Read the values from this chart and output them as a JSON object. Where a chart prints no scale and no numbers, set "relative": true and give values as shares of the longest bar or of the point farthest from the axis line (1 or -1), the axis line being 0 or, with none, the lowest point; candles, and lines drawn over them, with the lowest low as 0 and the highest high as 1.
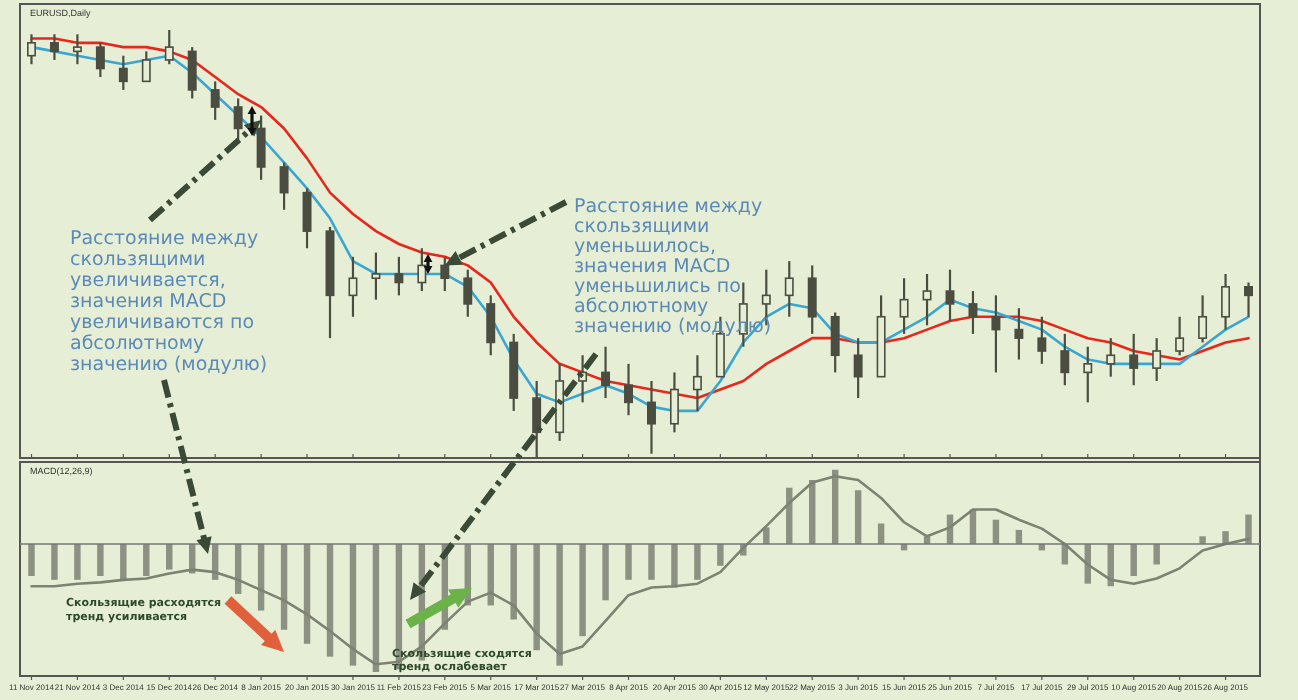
{
  "chart_data": [
    {
      "type": "candlestick",
      "title": "EURUSD,Daily",
      "relative": true,
      "tick_labels": false,
      "color": "#4a4d40",
      "categories": [
        "11 Nov 2014",
        null,
        "21 Nov 2014",
        null,
        "3 Dec 2014",
        null,
        "15 Dec 2014",
        null,
        "26 Dec 2014",
        null,
        "8 Jan 2015",
        null,
        "20 Jan 2015",
        null,
        "30 Jan 2015",
        null,
        "11 Feb 2015",
        null,
        "23 Feb 2015",
        null,
        "5 Mar 2015",
        null,
        "17 Mar 2015",
        null,
        "27 Mar 2015",
        null,
        "8 Apr 2015",
        null,
        "20 Apr 2015",
        null,
        "30 Apr 2015",
        null,
        "12 May 2015",
        null,
        "22 May 2015",
        null,
        "3 Jun 2015",
        null,
        "15 Jun 2015",
        null,
        "25 Jun 2015",
        null,
        "7 Jul 2015",
        null,
        "17 Jul 2015",
        null,
        "29 Jul 2015",
        null,
        "10 Aug 2015",
        null,
        "20 Aug 2015",
        null,
        "26 Aug 2015",
        null
      ],
      "ohlc": [
        [
          0.94,
          0.99,
          0.92,
          0.97
        ],
        [
          0.97,
          0.99,
          0.93,
          0.95
        ],
        [
          0.95,
          0.99,
          0.92,
          0.96
        ],
        [
          0.96,
          0.97,
          0.89,
          0.91
        ],
        [
          0.91,
          0.94,
          0.86,
          0.88
        ],
        [
          0.88,
          0.95,
          0.88,
          0.93
        ],
        [
          0.93,
          1,
          0.92,
          0.96
        ],
        [
          0.95,
          0.96,
          0.84,
          0.86
        ],
        [
          0.86,
          0.88,
          0.79,
          0.82
        ],
        [
          0.82,
          0.84,
          0.74,
          0.77
        ],
        [
          0.77,
          0.8,
          0.65,
          0.68
        ],
        [
          0.68,
          0.69,
          0.58,
          0.62
        ],
        [
          0.62,
          0.63,
          0.49,
          0.53
        ],
        [
          0.53,
          0.54,
          0.28,
          0.38
        ],
        [
          0.38,
          0.47,
          0.33,
          0.42
        ],
        [
          0.42,
          0.48,
          0.37,
          0.43
        ],
        [
          0.43,
          0.47,
          0.38,
          0.41
        ],
        [
          0.41,
          0.49,
          0.39,
          0.45
        ],
        [
          0.45,
          0.47,
          0.39,
          0.42
        ],
        [
          0.42,
          0.44,
          0.33,
          0.36
        ],
        [
          0.36,
          0.38,
          0.24,
          0.27
        ],
        [
          0.27,
          0.29,
          0.11,
          0.14
        ],
        [
          0.14,
          0.18,
          0,
          0.06
        ],
        [
          0.06,
          0.22,
          0.04,
          0.18
        ],
        [
          0.18,
          0.24,
          0.13,
          0.2
        ],
        [
          0.2,
          0.26,
          0.14,
          0.17
        ],
        [
          0.17,
          0.22,
          0.1,
          0.13
        ],
        [
          0.13,
          0.18,
          0.01,
          0.08
        ],
        [
          0.08,
          0.2,
          0.06,
          0.16
        ],
        [
          0.16,
          0.24,
          0.11,
          0.19
        ],
        [
          0.19,
          0.33,
          0.19,
          0.29
        ],
        [
          0.29,
          0.41,
          0.26,
          0.36
        ],
        [
          0.36,
          0.44,
          0.31,
          0.38
        ],
        [
          0.38,
          0.46,
          0.33,
          0.42
        ],
        [
          0.42,
          0.45,
          0.29,
          0.33
        ],
        [
          0.33,
          0.34,
          0.2,
          0.24
        ],
        [
          0.24,
          0.28,
          0.14,
          0.19
        ],
        [
          0.19,
          0.38,
          0.19,
          0.33
        ],
        [
          0.33,
          0.42,
          0.29,
          0.37
        ],
        [
          0.37,
          0.43,
          0.31,
          0.39
        ],
        [
          0.39,
          0.44,
          0.32,
          0.36
        ],
        [
          0.36,
          0.39,
          0.29,
          0.33
        ],
        [
          0.33,
          0.38,
          0.2,
          0.3
        ],
        [
          0.3,
          0.35,
          0.23,
          0.28
        ],
        [
          0.28,
          0.33,
          0.22,
          0.25
        ],
        [
          0.25,
          0.29,
          0.17,
          0.2
        ],
        [
          0.2,
          0.26,
          0.13,
          0.22
        ],
        [
          0.22,
          0.28,
          0.19,
          0.24
        ],
        [
          0.24,
          0.29,
          0.17,
          0.21
        ],
        [
          0.21,
          0.28,
          0.18,
          0.25
        ],
        [
          0.25,
          0.33,
          0.24,
          0.28
        ],
        [
          0.28,
          0.38,
          0.27,
          0.33
        ],
        [
          0.33,
          0.43,
          0.3,
          0.4
        ],
        [
          0.4,
          0.41,
          0.33,
          0.38
        ]
      ],
      "series": [
        {
          "type": "line",
          "color": "#e8261c",
          "values": [
            0.98,
            0.98,
            0.97,
            0.97,
            0.96,
            0.96,
            0.95,
            0.93,
            0.89,
            0.85,
            0.82,
            0.77,
            0.7,
            0.62,
            0.57,
            0.53,
            0.5,
            0.48,
            0.47,
            0.45,
            0.41,
            0.33,
            0.27,
            0.22,
            0.2,
            0.18,
            0.17,
            0.16,
            0.15,
            0.14,
            0.16,
            0.18,
            0.22,
            0.25,
            0.28,
            0.28,
            0.27,
            0.27,
            0.28,
            0.3,
            0.32,
            0.33,
            0.33,
            0.33,
            0.32,
            0.3,
            0.28,
            0.27,
            0.25,
            0.24,
            0.23,
            0.25,
            0.27,
            0.28
          ]
        },
        {
          "type": "line",
          "color": "#3aa6d0",
          "values": [
            0.96,
            0.95,
            0.94,
            0.93,
            0.92,
            0.93,
            0.94,
            0.9,
            0.85,
            0.8,
            0.75,
            0.69,
            0.63,
            0.56,
            0.46,
            0.43,
            0.43,
            0.43,
            0.43,
            0.4,
            0.33,
            0.23,
            0.15,
            0.13,
            0.15,
            0.17,
            0.15,
            0.12,
            0.11,
            0.11,
            0.18,
            0.27,
            0.33,
            0.36,
            0.35,
            0.29,
            0.27,
            0.27,
            0.3,
            0.33,
            0.37,
            0.35,
            0.34,
            0.32,
            0.3,
            0.26,
            0.23,
            0.22,
            0.22,
            0.22,
            0.22,
            0.26,
            0.3,
            0.33
          ]
        }
      ],
      "annotations": [
        {
          "text": "Расстояние между скользящими увеличивается, значения MACD увеличиваются по абсолютному значению (модулю)",
          "x": "8 Jan 2015",
          "y": 0.79
        },
        {
          "text": "Расстояние между скользящими уменьшилось, значения MACD уменьшились по абсолютному значению (модулю)",
          "x": "23 Feb 2015",
          "y": 0.45
        }
      ]
    },
    {
      "type": "bar",
      "title": "MACD(12,26,9)",
      "relative": true,
      "categories": [
        "11 Nov 2014",
        null,
        "21 Nov 2014",
        null,
        "3 Dec 2014",
        null,
        "15 Dec 2014",
        null,
        "26 Dec 2014",
        null,
        "8 Jan 2015",
        null,
        "20 Jan 2015",
        null,
        "30 Jan 2015",
        null,
        "11 Feb 2015",
        null,
        "23 Feb 2015",
        null,
        "5 Mar 2015",
        null,
        "17 Mar 2015",
        null,
        "27 Mar 2015",
        null,
        "8 Apr 2015",
        null,
        "20 Apr 2015",
        null,
        "30 Apr 2015",
        null,
        "12 May 2015",
        null,
        "22 May 2015",
        null,
        "3 Jun 2015",
        null,
        "15 Jun 2015",
        null,
        "25 Jun 2015",
        null,
        "7 Jul 2015",
        null,
        "17 Jul 2015",
        null,
        "29 Jul 2015",
        null,
        "10 Aug 2015",
        null,
        "20 Aug 2015",
        null,
        "26 Aug 2015",
        null
      ],
      "series": [
        {
          "color": "#8c9182",
          "values": [
            -0.25,
            -0.28,
            -0.28,
            -0.25,
            -0.28,
            -0.25,
            -0.2,
            -0.23,
            -0.28,
            -0.39,
            -0.52,
            -0.67,
            -0.78,
            -0.88,
            -0.95,
            -1,
            -0.98,
            -0.91,
            -0.67,
            -0.48,
            -0.48,
            -0.59,
            -0.83,
            -0.95,
            -0.72,
            -0.44,
            -0.28,
            -0.28,
            -0.34,
            -0.28,
            -0.17,
            -0.09,
            0.13,
            0.44,
            0.5,
            0.58,
            0.42,
            0.16,
            -0.05,
            0.06,
            0.23,
            0.27,
            0.19,
            0.11,
            -0.05,
            -0.16,
            -0.31,
            -0.33,
            -0.25,
            -0.16,
            0,
            0.06,
            0.1,
            0.23
          ]
        },
        {
          "type": "line",
          "color": "#7d8273",
          "values": [
            -0.33,
            -0.33,
            -0.31,
            -0.3,
            -0.28,
            -0.27,
            -0.23,
            -0.2,
            -0.22,
            -0.28,
            -0.36,
            -0.44,
            -0.55,
            -0.68,
            -0.82,
            -0.94,
            -0.92,
            -0.8,
            -0.62,
            -0.45,
            -0.38,
            -0.48,
            -0.7,
            -0.86,
            -0.8,
            -0.6,
            -0.4,
            -0.34,
            -0.33,
            -0.31,
            -0.22,
            -0.03,
            0.14,
            0.32,
            0.48,
            0.53,
            0.5,
            0.36,
            0.17,
            0.06,
            0.13,
            0.27,
            0.27,
            0.19,
            0.12,
            0,
            -0.16,
            -0.28,
            -0.31,
            -0.27,
            -0.19,
            -0.05,
            0,
            0.04
          ]
        }
      ],
      "annotations": [
        "Скользящие расходятся тренд усиливается",
        "Скользящие сходятся тренд ослабевает"
      ]
    }
  ]
}
